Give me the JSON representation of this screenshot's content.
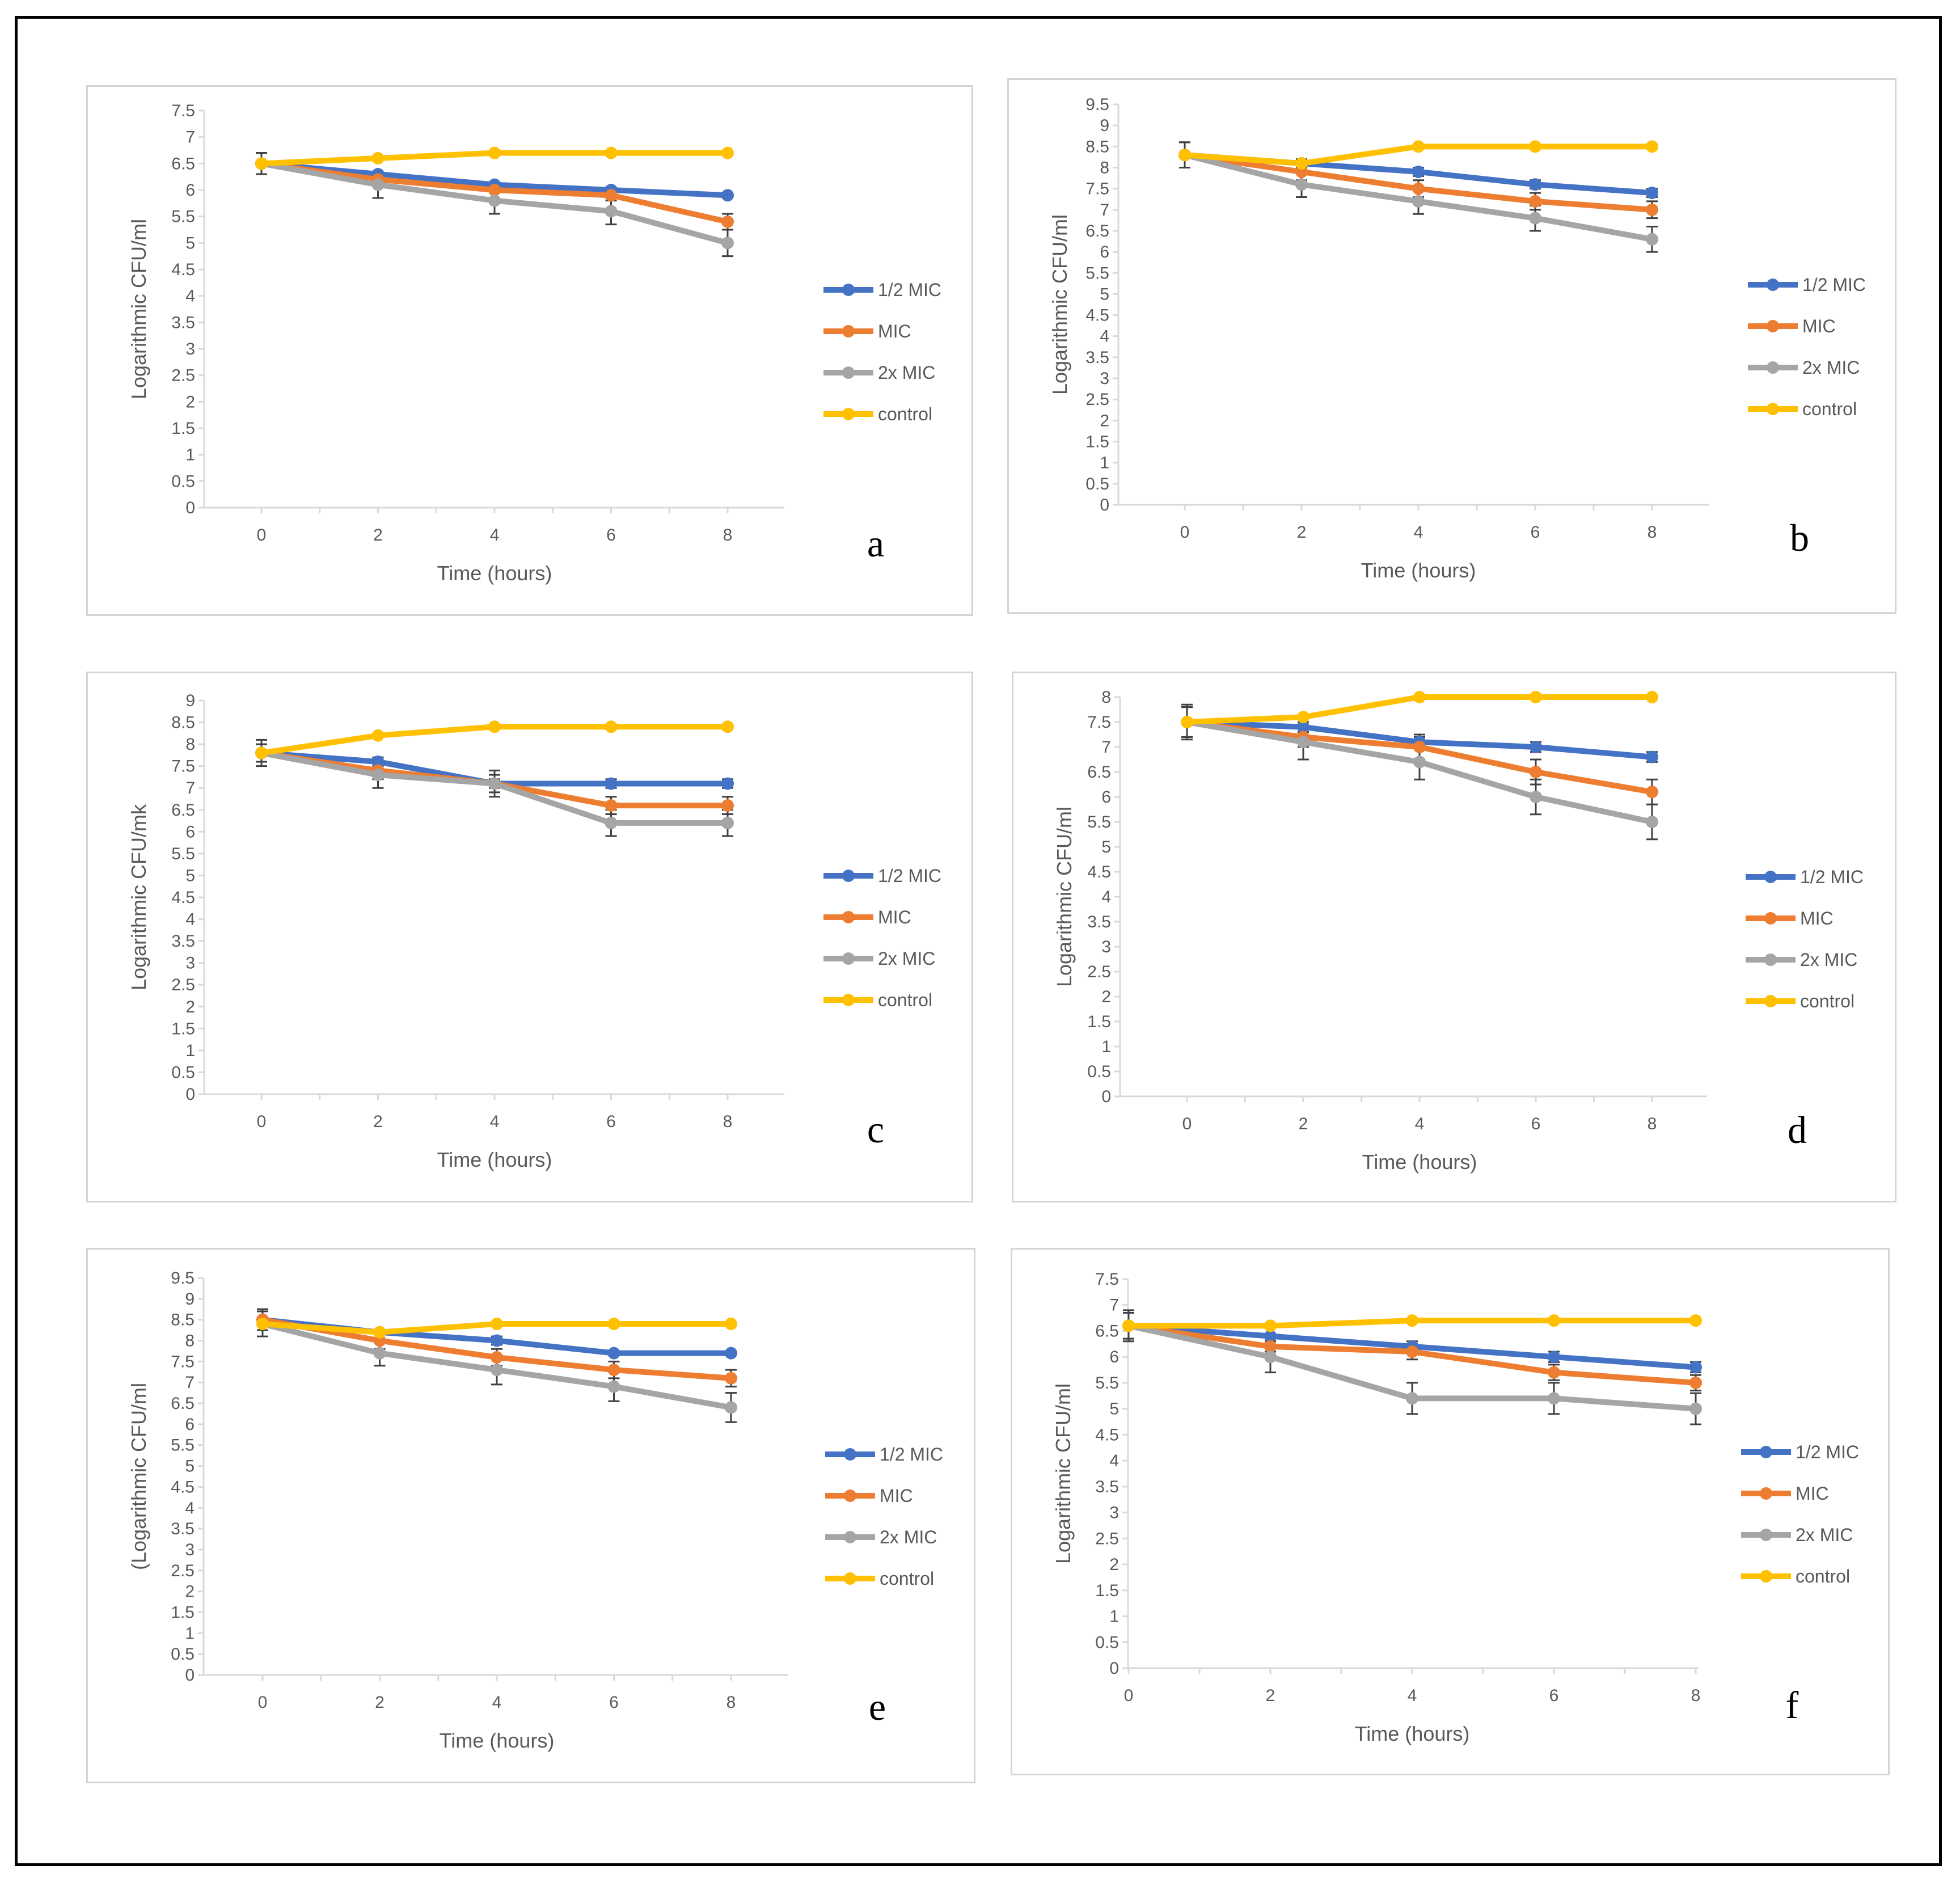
{
  "colors": {
    "half_mic": "#4472C4",
    "mic": "#ED7D31",
    "two_x_mic": "#A5A5A5",
    "control": "#FFC000"
  },
  "chart_data": [
    {
      "type": "line",
      "panel_label": "a",
      "ylabel": "Logarithmic CFU/ml",
      "xlabel": "Time (hours)",
      "x": [
        0,
        2,
        4,
        6,
        8
      ],
      "ylim": [
        0,
        7.5
      ],
      "ytick_step": 0.5,
      "yticks": [
        "0",
        "0.5",
        "1",
        "1.5",
        "2",
        "2.5",
        "3",
        "3.5",
        "4",
        "4.5",
        "5",
        "5.5",
        "6",
        "6.5",
        "7",
        "7.5"
      ],
      "series": [
        {
          "name": "1/2 MIC",
          "color": "#4472C4",
          "values": [
            6.5,
            6.3,
            6.1,
            6.0,
            5.9
          ],
          "errors": [
            0.2,
            0.05,
            0.05,
            0.05,
            0.05
          ]
        },
        {
          "name": "MIC",
          "color": "#ED7D31",
          "values": [
            6.5,
            6.2,
            6.0,
            5.9,
            5.4
          ],
          "errors": [
            0.2,
            0.1,
            0.05,
            0.1,
            0.15
          ]
        },
        {
          "name": "2x MIC",
          "color": "#A5A5A5",
          "values": [
            6.5,
            6.1,
            5.8,
            5.6,
            5.0
          ],
          "errors": [
            0.2,
            0.25,
            0.25,
            0.25,
            0.25
          ]
        },
        {
          "name": "control",
          "color": "#FFC000",
          "values": [
            6.5,
            6.6,
            6.7,
            6.7,
            6.7
          ],
          "errors": [
            0,
            0,
            0,
            0,
            0
          ]
        }
      ]
    },
    {
      "type": "line",
      "panel_label": "b",
      "ylabel": "Logarithmic CFU/ml",
      "xlabel": "Time (hours)",
      "x": [
        0,
        2,
        4,
        6,
        8
      ],
      "ylim": [
        0,
        9.5
      ],
      "ytick_step": 0.5,
      "yticks": [
        "0",
        "0.5",
        "1",
        "1.5",
        "2",
        "2.5",
        "3",
        "3.5",
        "4",
        "4.5",
        "5",
        "5.5",
        "6",
        "6.5",
        "7",
        "7.5",
        "8",
        "8.5",
        "9",
        "9.5"
      ],
      "series": [
        {
          "name": "1/2 MIC",
          "color": "#4472C4",
          "values": [
            8.3,
            8.1,
            7.9,
            7.6,
            7.4
          ],
          "errors": [
            0.3,
            0.1,
            0.1,
            0.1,
            0.1
          ]
        },
        {
          "name": "MIC",
          "color": "#ED7D31",
          "values": [
            8.3,
            7.9,
            7.5,
            7.2,
            7.0
          ],
          "errors": [
            0.3,
            0.2,
            0.2,
            0.2,
            0.2
          ]
        },
        {
          "name": "2x MIC",
          "color": "#A5A5A5",
          "values": [
            8.3,
            7.6,
            7.2,
            6.8,
            6.3
          ],
          "errors": [
            0.3,
            0.3,
            0.3,
            0.3,
            0.3
          ]
        },
        {
          "name": "control",
          "color": "#FFC000",
          "values": [
            8.3,
            8.1,
            8.5,
            8.5,
            8.5
          ],
          "errors": [
            0,
            0,
            0,
            0,
            0
          ]
        }
      ]
    },
    {
      "type": "line",
      "panel_label": "c",
      "ylabel": "Logarithmic CFU/mk",
      "xlabel": "Time (hours)",
      "x": [
        0,
        2,
        4,
        6,
        8
      ],
      "ylim": [
        0,
        9
      ],
      "ytick_step": 0.5,
      "yticks": [
        "0",
        "0.5",
        "1",
        "1.5",
        "2",
        "2.5",
        "3",
        "3.5",
        "4",
        "4.5",
        "5",
        "5.5",
        "6",
        "6.5",
        "7",
        "7.5",
        "8",
        "8.5",
        "9"
      ],
      "series": [
        {
          "name": "1/2 MIC",
          "color": "#4472C4",
          "values": [
            7.8,
            7.6,
            7.1,
            7.1,
            7.1
          ],
          "errors": [
            0.2,
            0.1,
            0.1,
            0.1,
            0.1
          ]
        },
        {
          "name": "MIC",
          "color": "#ED7D31",
          "values": [
            7.8,
            7.4,
            7.1,
            6.6,
            6.6
          ],
          "errors": [
            0.2,
            0.2,
            0.2,
            0.2,
            0.2
          ]
        },
        {
          "name": "2x MIC",
          "color": "#A5A5A5",
          "values": [
            7.8,
            7.3,
            7.1,
            6.2,
            6.2
          ],
          "errors": [
            0.3,
            0.3,
            0.3,
            0.3,
            0.3
          ]
        },
        {
          "name": "control",
          "color": "#FFC000",
          "values": [
            7.8,
            8.2,
            8.4,
            8.4,
            8.4
          ],
          "errors": [
            0,
            0,
            0.05,
            0.05,
            0.05
          ]
        }
      ]
    },
    {
      "type": "line",
      "panel_label": "d",
      "ylabel": "Logarithmic CFU/ml",
      "xlabel": "Time (hours)",
      "x": [
        0,
        2,
        4,
        6,
        8
      ],
      "ylim": [
        0,
        8
      ],
      "ytick_step": 0.5,
      "yticks": [
        "0",
        "0.5",
        "1",
        "1.5",
        "2",
        "2.5",
        "3",
        "3.5",
        "4",
        "4.5",
        "5",
        "5.5",
        "6",
        "6.5",
        "7",
        "7.5",
        "8"
      ],
      "series": [
        {
          "name": "1/2 MIC",
          "color": "#4472C4",
          "values": [
            7.5,
            7.4,
            7.1,
            7.0,
            6.8
          ],
          "errors": [
            0.3,
            0.1,
            0.1,
            0.1,
            0.1
          ]
        },
        {
          "name": "MIC",
          "color": "#ED7D31",
          "values": [
            7.5,
            7.2,
            7.0,
            6.5,
            6.1
          ],
          "errors": [
            0.3,
            0.2,
            0.25,
            0.25,
            0.25
          ]
        },
        {
          "name": "2x MIC",
          "color": "#A5A5A5",
          "values": [
            7.5,
            7.1,
            6.7,
            6.0,
            5.5
          ],
          "errors": [
            0.35,
            0.35,
            0.35,
            0.35,
            0.35
          ]
        },
        {
          "name": "control",
          "color": "#FFC000",
          "values": [
            7.5,
            7.6,
            8.0,
            8.0,
            8.0
          ],
          "errors": [
            0,
            0,
            0,
            0,
            0
          ]
        }
      ]
    },
    {
      "type": "line",
      "panel_label": "e",
      "ylabel": "(Logarithmic CFU/ml",
      "xlabel": "Time (hours)",
      "x": [
        0,
        2,
        4,
        6,
        8
      ],
      "ylim": [
        0,
        9.5
      ],
      "ytick_step": 0.5,
      "yticks": [
        "0",
        "0.5",
        "1",
        "1.5",
        "2",
        "2.5",
        "3",
        "3.5",
        "4",
        "4.5",
        "5",
        "5.5",
        "6",
        "6.5",
        "7",
        "7.5",
        "8",
        "8.5",
        "9",
        "9.5"
      ],
      "series": [
        {
          "name": "1/2 MIC",
          "color": "#4472C4",
          "values": [
            8.5,
            8.2,
            8.0,
            7.7,
            7.7
          ],
          "errors": [
            0.25,
            0.05,
            0.1,
            0.05,
            0.05
          ]
        },
        {
          "name": "MIC",
          "color": "#ED7D31",
          "values": [
            8.5,
            8.0,
            7.6,
            7.3,
            7.1
          ],
          "errors": [
            0.25,
            0.2,
            0.2,
            0.2,
            0.2
          ]
        },
        {
          "name": "2x MIC",
          "color": "#A5A5A5",
          "values": [
            8.4,
            7.7,
            7.3,
            6.9,
            6.4
          ],
          "errors": [
            0.3,
            0.3,
            0.35,
            0.35,
            0.35
          ]
        },
        {
          "name": "control",
          "color": "#FFC000",
          "values": [
            8.4,
            8.2,
            8.4,
            8.4,
            8.4
          ],
          "errors": [
            0,
            0,
            0,
            0,
            0
          ]
        }
      ]
    },
    {
      "type": "line",
      "panel_label": "f",
      "ylabel": "Logarithmic CFU/ml",
      "xlabel": "Time (hours)",
      "x": [
        0,
        2,
        4,
        6,
        8
      ],
      "ylim": [
        0,
        7.5
      ],
      "ytick_step": 0.5,
      "yticks": [
        "0",
        "0.5",
        "1",
        "1.5",
        "2",
        "2.5",
        "3",
        "3.5",
        "4",
        "4.5",
        "5",
        "5.5",
        "6",
        "6.5",
        "7",
        "7.5"
      ],
      "series": [
        {
          "name": "1/2 MIC",
          "color": "#4472C4",
          "values": [
            6.6,
            6.4,
            6.2,
            6.0,
            5.8
          ],
          "errors": [
            0.25,
            0.05,
            0.1,
            0.1,
            0.1
          ]
        },
        {
          "name": "MIC",
          "color": "#ED7D31",
          "values": [
            6.6,
            6.2,
            6.1,
            5.7,
            5.5
          ],
          "errors": [
            0.25,
            0.1,
            0.15,
            0.15,
            0.15
          ]
        },
        {
          "name": "2x MIC",
          "color": "#A5A5A5",
          "values": [
            6.6,
            6.0,
            5.2,
            5.2,
            5.0
          ],
          "errors": [
            0.3,
            0.3,
            0.3,
            0.3,
            0.3
          ]
        },
        {
          "name": "control",
          "color": "#FFC000",
          "values": [
            6.6,
            6.6,
            6.7,
            6.7,
            6.7
          ],
          "errors": [
            0,
            0,
            0,
            0,
            0
          ]
        }
      ]
    }
  ]
}
